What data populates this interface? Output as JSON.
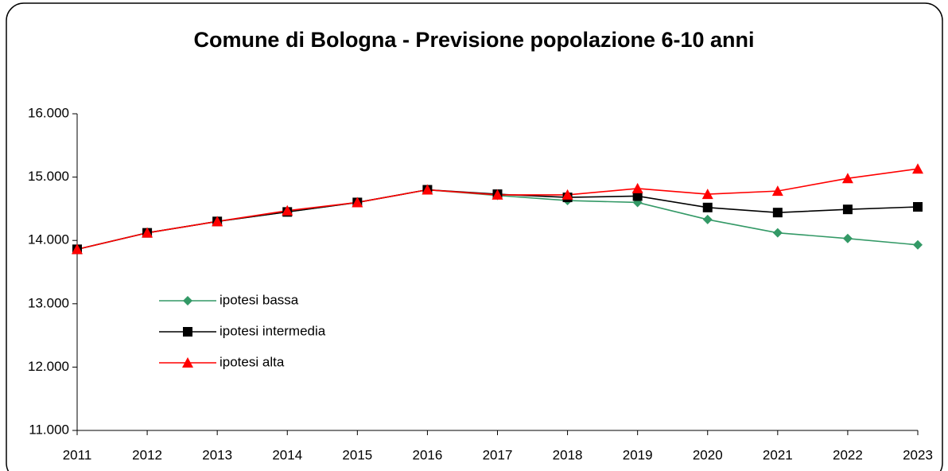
{
  "chart_data": {
    "type": "line",
    "title": "Comune di Bologna - Previsione popolazione 6-10 anni",
    "categories": [
      "2011",
      "2012",
      "2013",
      "2014",
      "2015",
      "2016",
      "2017",
      "2018",
      "2019",
      "2020",
      "2021",
      "2022",
      "2023"
    ],
    "series": [
      {
        "name": "ipotesi bassa",
        "color": "#339966",
        "marker": "diamond",
        "values": [
          13860,
          14120,
          14300,
          14450,
          14600,
          14800,
          14710,
          14630,
          14600,
          14330,
          14120,
          14030,
          13930
        ]
      },
      {
        "name": "ipotesi intermedia",
        "color": "#000000",
        "marker": "square",
        "values": [
          13860,
          14120,
          14300,
          14450,
          14600,
          14800,
          14730,
          14680,
          14700,
          14520,
          14440,
          14490,
          14530
        ]
      },
      {
        "name": "ipotesi alta",
        "color": "#ff0000",
        "marker": "triangle",
        "values": [
          13860,
          14120,
          14300,
          14470,
          14600,
          14800,
          14720,
          14720,
          14820,
          14730,
          14780,
          14980,
          15130
        ]
      }
    ],
    "ylim": [
      11000,
      16000
    ],
    "yticks": [
      {
        "value": 11000,
        "label": "11.000"
      },
      {
        "value": 12000,
        "label": "12.000"
      },
      {
        "value": 13000,
        "label": "13.000"
      },
      {
        "value": 14000,
        "label": "14.000"
      },
      {
        "value": 15000,
        "label": "15.000"
      },
      {
        "value": 16000,
        "label": "16.000"
      }
    ],
    "grid": false,
    "legend": "left"
  }
}
